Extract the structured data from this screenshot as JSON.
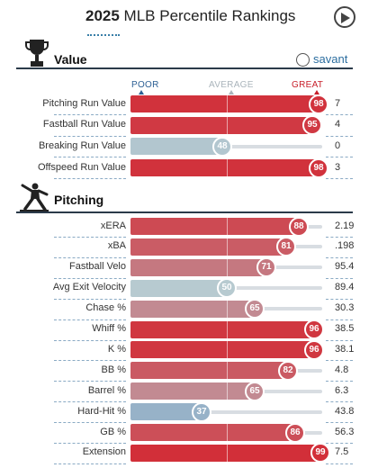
{
  "header": {
    "title_year": "2025",
    "title_rest": " MLB Percentile Rankings"
  },
  "icons": {
    "play": "play-icon",
    "trophy": "trophy-icon",
    "pitcher": "pitcher-icon",
    "savant_logo": "savant-ball-icon"
  },
  "value_section": {
    "title": "Value",
    "brand": "savant"
  },
  "scale": {
    "poor": "POOR",
    "average": "AVERAGE",
    "great": "GREAT"
  },
  "pitching_section": {
    "title": "Pitching"
  },
  "colors": {
    "great_red": "#d22d37",
    "neutral_gray": "#b7cad0",
    "track": "#d8dde2",
    "poor_blue": "#3b6fb3"
  },
  "chart_data": [
    {
      "type": "bar",
      "section": "Value",
      "categories": [
        "Pitching Run Value",
        "Fastball Run Value",
        "Breaking Run Value",
        "Offspeed Run Value"
      ],
      "percentiles": [
        98,
        95,
        48,
        98
      ],
      "values": [
        "7",
        "4",
        "0",
        "3"
      ],
      "xlim": [
        0,
        100
      ]
    },
    {
      "type": "bar",
      "section": "Pitching",
      "categories": [
        "xERA",
        "xBA",
        "Fastball Velo",
        "Avg Exit Velocity",
        "Chase %",
        "Whiff %",
        "K %",
        "BB %",
        "Barrel %",
        "Hard-Hit %",
        "GB %",
        "Extension"
      ],
      "percentiles": [
        88,
        81,
        71,
        50,
        65,
        96,
        96,
        82,
        65,
        37,
        86,
        99
      ],
      "values": [
        "2.19",
        ".198",
        "95.4",
        "89.4",
        "30.3",
        "38.5",
        "38.1",
        "4.8",
        "6.3",
        "43.8",
        "56.3",
        "7.5"
      ],
      "xlim": [
        0,
        100
      ]
    }
  ]
}
